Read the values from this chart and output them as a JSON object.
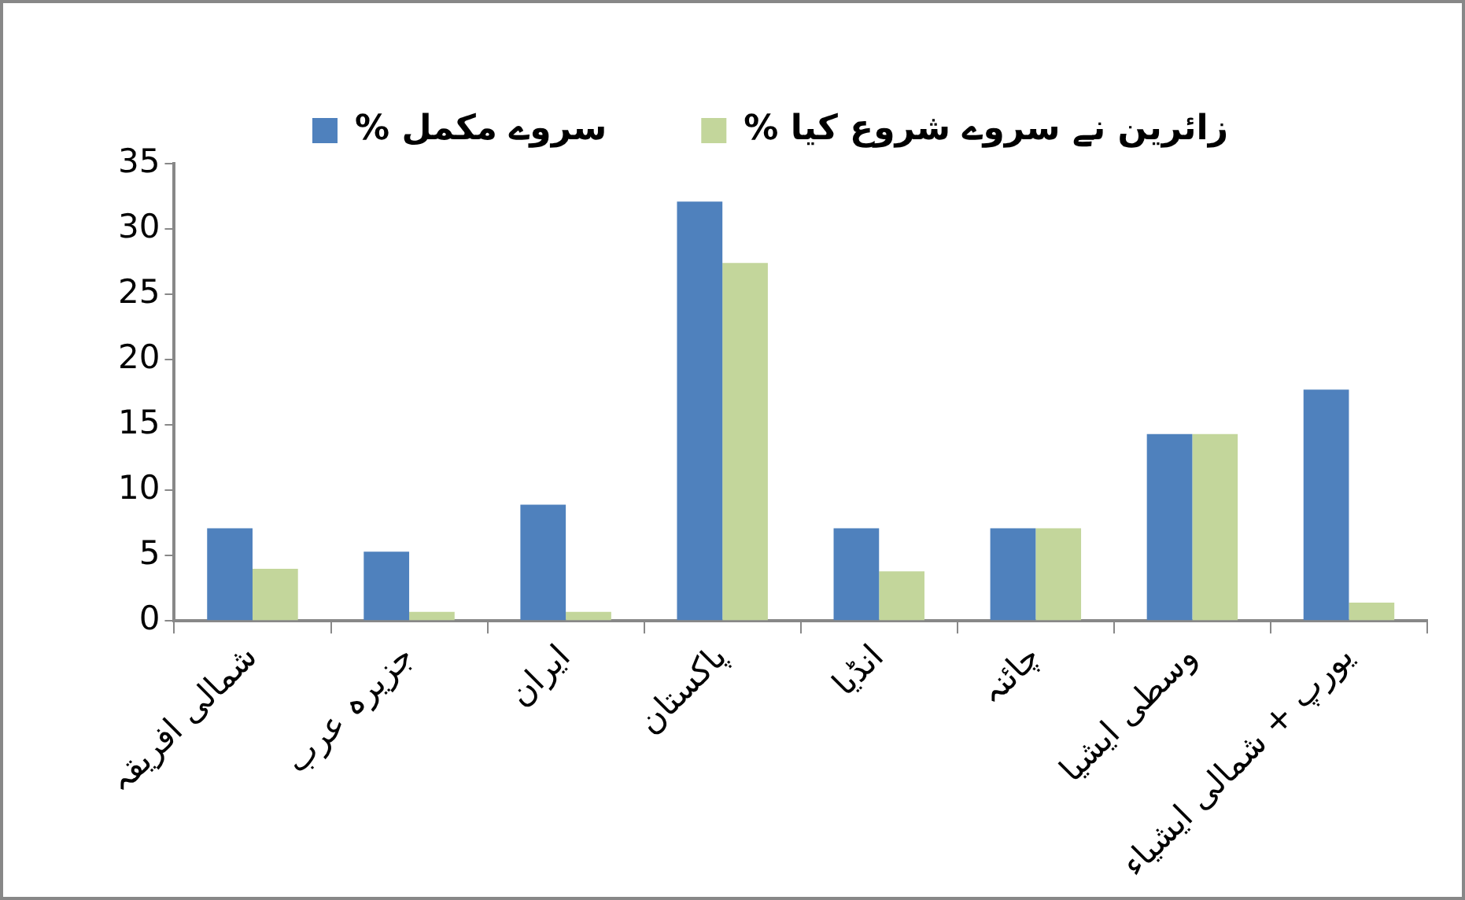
{
  "chart_data": {
    "type": "bar",
    "categories": [
      "شمالی افریقہ",
      "جزیرہ عرب",
      "ایران",
      "پاکستان",
      "انڈیا",
      "چائنہ",
      "وسطی ایشیا",
      "یورپ + شمالی ایشیاء"
    ],
    "series": [
      {
        "name": "% سروے مکمل",
        "color": "#4f81bd",
        "values": [
          7.1,
          5.3,
          8.9,
          32.1,
          7.1,
          7.1,
          14.3,
          17.7
        ]
      },
      {
        "name": "% زائرین نے سروے شروع کیا",
        "color": "#c3d69b",
        "values": [
          4.0,
          0.7,
          0.7,
          27.4,
          3.8,
          7.1,
          14.3,
          1.4
        ]
      }
    ],
    "ylim": [
      0,
      35
    ],
    "yticks": [
      0,
      5,
      10,
      15,
      20,
      25,
      30,
      35
    ],
    "legend": "top"
  }
}
